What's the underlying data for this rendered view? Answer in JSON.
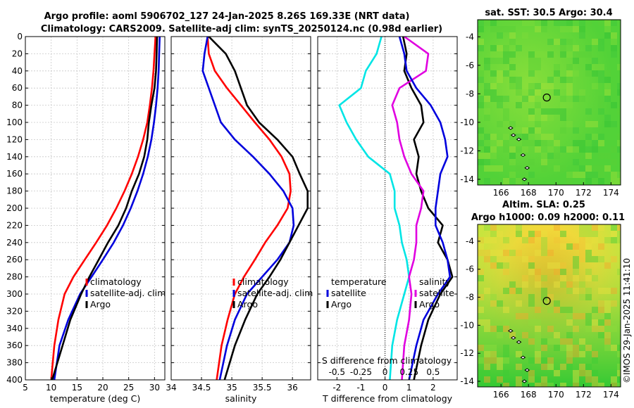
{
  "figure": {
    "title_line1": "Argo profile: aoml 5906702_127 24-Jan-2025 8.26S 169.33E (NRT data)",
    "title_line2": "Climatology: CARS2009. Satellite-adj clim: synTS_20250124.nc (0.98d earlier)",
    "watermark": "©IMOS 29-Jan-2025 11:41:10"
  },
  "colors": {
    "climatology": "#ff0000",
    "satellite": "#0000dd",
    "argo": "#000000",
    "temp_diff": "#00e5e5",
    "sal_diff": "#e000e0"
  },
  "chart_data": [
    {
      "type": "line",
      "name": "temperature-profile",
      "xlabel": "temperature (deg C)",
      "xlim": [
        5,
        32
      ],
      "ylim": [
        400,
        0
      ],
      "xticks": [
        5,
        10,
        15,
        20,
        25,
        30
      ],
      "yticks": [
        0,
        20,
        40,
        60,
        80,
        100,
        120,
        140,
        160,
        180,
        200,
        220,
        240,
        260,
        280,
        300,
        320,
        340,
        360,
        380,
        400
      ],
      "legend": [
        "climatology",
        "satellite-adj. clim",
        "Argo"
      ],
      "series": [
        {
          "name": "climatology",
          "color": "#ff0000",
          "x": [
            30.2,
            30.0,
            29.8,
            29.5,
            29.1,
            28.6,
            27.8,
            26.8,
            25.6,
            24.2,
            22.6,
            20.8,
            18.7,
            16.5,
            14.3,
            12.6,
            11.4,
            10.6,
            10.0
          ],
          "depth": [
            0,
            20,
            40,
            60,
            80,
            100,
            120,
            140,
            160,
            180,
            200,
            220,
            240,
            260,
            280,
            300,
            330,
            360,
            400
          ]
        },
        {
          "name": "satellite-adj. clim",
          "color": "#0000dd",
          "x": [
            31.0,
            30.9,
            30.8,
            30.6,
            30.3,
            29.9,
            29.4,
            28.7,
            27.8,
            26.7,
            25.4,
            23.9,
            22.1,
            20.0,
            17.8,
            15.6,
            13.3,
            11.6,
            10.6
          ],
          "depth": [
            0,
            20,
            40,
            60,
            80,
            100,
            120,
            140,
            160,
            180,
            200,
            220,
            240,
            260,
            280,
            300,
            330,
            360,
            400
          ]
        },
        {
          "name": "Argo",
          "color": "#000000",
          "x": [
            30.5,
            30.4,
            30.3,
            30.0,
            29.4,
            28.9,
            28.6,
            28.0,
            27.0,
            25.6,
            24.5,
            23.0,
            21.0,
            19.2,
            17.4,
            15.8,
            13.7,
            12.2,
            10.2
          ],
          "depth": [
            0,
            20,
            40,
            60,
            80,
            100,
            120,
            140,
            160,
            180,
            200,
            220,
            240,
            260,
            280,
            300,
            330,
            360,
            400
          ]
        }
      ]
    },
    {
      "type": "line",
      "name": "salinity-profile",
      "xlabel": "salinity",
      "xlim": [
        34,
        36.3
      ],
      "ylim": [
        400,
        0
      ],
      "xticks": [
        34,
        34.5,
        35,
        35.5,
        36
      ],
      "xtick_labels": [
        "34",
        "34.5",
        "35",
        "35.5",
        "36"
      ],
      "legend": [
        "climatology",
        "satellite-adj. clim",
        "Argo"
      ],
      "series": [
        {
          "name": "climatology",
          "color": "#ff0000",
          "x": [
            34.6,
            34.62,
            34.72,
            34.92,
            35.15,
            35.38,
            35.62,
            35.82,
            35.95,
            35.97,
            35.92,
            35.75,
            35.55,
            35.38,
            35.2,
            35.05,
            34.93,
            34.83,
            34.75
          ],
          "depth": [
            0,
            20,
            40,
            60,
            80,
            100,
            120,
            140,
            160,
            180,
            200,
            220,
            240,
            260,
            280,
            300,
            330,
            360,
            400
          ]
        },
        {
          "name": "satellite-adj. clim",
          "color": "#0000dd",
          "x": [
            34.6,
            34.55,
            34.52,
            34.62,
            34.72,
            34.82,
            35.05,
            35.35,
            35.62,
            35.85,
            36.0,
            36.02,
            35.95,
            35.75,
            35.5,
            35.25,
            35.05,
            34.92,
            34.8
          ],
          "depth": [
            0,
            20,
            40,
            60,
            80,
            100,
            120,
            140,
            160,
            180,
            200,
            220,
            240,
            260,
            280,
            300,
            330,
            360,
            400
          ]
        },
        {
          "name": "Argo",
          "color": "#000000",
          "x": [
            34.62,
            34.9,
            35.05,
            35.15,
            35.25,
            35.45,
            35.75,
            36.0,
            36.12,
            36.25,
            36.25,
            36.1,
            35.95,
            35.8,
            35.62,
            35.42,
            35.22,
            35.05,
            34.88
          ],
          "depth": [
            0,
            20,
            40,
            60,
            80,
            100,
            120,
            140,
            160,
            180,
            200,
            220,
            240,
            260,
            280,
            300,
            330,
            360,
            400
          ]
        }
      ]
    },
    {
      "type": "line",
      "name": "difference-profile",
      "xlabel": "T difference from climatology",
      "xlabel_top": "S difference from climatology",
      "xlim": [
        -2.8,
        3.0
      ],
      "ylim": [
        400,
        0
      ],
      "xticks": [
        -2,
        -1,
        0,
        1,
        2
      ],
      "top_ticks": [
        -0.5,
        -0.25,
        0,
        0.25,
        0.5
      ],
      "top_tick_labels": [
        "-0.5",
        "-0.25",
        "0",
        "0.25",
        "0.5"
      ],
      "legend_temperature": [
        "temperature",
        "satellite",
        "Argo"
      ],
      "legend_salinity": [
        "salinity",
        "satellite",
        "Argo"
      ],
      "series": [
        {
          "name": "temperature satellite",
          "color": "#00e5e5",
          "x": [
            -0.15,
            -0.35,
            -0.8,
            -1.0,
            -1.9,
            -1.6,
            -1.2,
            -0.7,
            0.2,
            0.4,
            0.4,
            0.6,
            0.7,
            0.9,
            1.0,
            0.8,
            0.5,
            0.3,
            0.2
          ],
          "depth": [
            0,
            20,
            40,
            60,
            80,
            100,
            120,
            140,
            160,
            180,
            200,
            220,
            240,
            260,
            280,
            300,
            330,
            360,
            400
          ]
        },
        {
          "name": "temperature Argo",
          "color": "#000000",
          "x": [
            0.75,
            0.9,
            0.8,
            1.1,
            1.5,
            1.6,
            1.2,
            1.4,
            1.3,
            1.5,
            1.8,
            2.4,
            2.2,
            2.6,
            2.8,
            2.3,
            1.8,
            1.5,
            1.2
          ],
          "depth": [
            0,
            20,
            40,
            60,
            80,
            100,
            120,
            140,
            160,
            180,
            200,
            220,
            240,
            260,
            280,
            300,
            330,
            360,
            400
          ]
        },
        {
          "name": "salinity satellite",
          "color": "#e000e0",
          "x": [
            0.8,
            1.8,
            1.7,
            0.6,
            0.3,
            0.5,
            0.6,
            0.8,
            1.1,
            1.6,
            1.5,
            1.3,
            1.3,
            1.2,
            1.0,
            1.1,
            1.0,
            0.8,
            0.7
          ],
          "depth": [
            0,
            20,
            40,
            60,
            80,
            100,
            120,
            140,
            160,
            180,
            200,
            220,
            240,
            260,
            280,
            300,
            330,
            360,
            400
          ]
        },
        {
          "name": "salinity Argo",
          "color": "#0000dd",
          "x": [
            0.6,
            0.8,
            0.9,
            1.3,
            1.9,
            2.3,
            2.5,
            2.6,
            2.3,
            2.2,
            2.1,
            2.1,
            2.4,
            2.6,
            2.7,
            2.2,
            1.6,
            1.3,
            1.0
          ],
          "depth": [
            0,
            20,
            40,
            60,
            80,
            100,
            120,
            140,
            160,
            180,
            200,
            220,
            240,
            260,
            280,
            300,
            330,
            360,
            400
          ]
        }
      ]
    },
    {
      "type": "heatmap",
      "name": "sst-map",
      "title": "sat. SST: 30.5 Argo: 30.4",
      "xticks": [
        166,
        168,
        170,
        172,
        174
      ],
      "yticks": [
        -4,
        -6,
        -8,
        -10,
        -12,
        -14
      ],
      "xlim": [
        164.3,
        174.7
      ],
      "ylim": [
        -14.4,
        -2.8
      ],
      "marker": [
        169.33,
        -8.26
      ]
    },
    {
      "type": "heatmap",
      "name": "sla-map",
      "title_line1": "Altim. SLA: 0.25",
      "title_line2": "Argo h1000: 0.09 h2000: 0.11",
      "xticks": [
        166,
        168,
        170,
        172,
        174
      ],
      "yticks": [
        -4,
        -6,
        -8,
        -10,
        -12,
        -14
      ],
      "xlim": [
        164.3,
        174.7
      ],
      "ylim": [
        -14.4,
        -2.8
      ],
      "marker": [
        169.33,
        -8.26
      ]
    }
  ]
}
